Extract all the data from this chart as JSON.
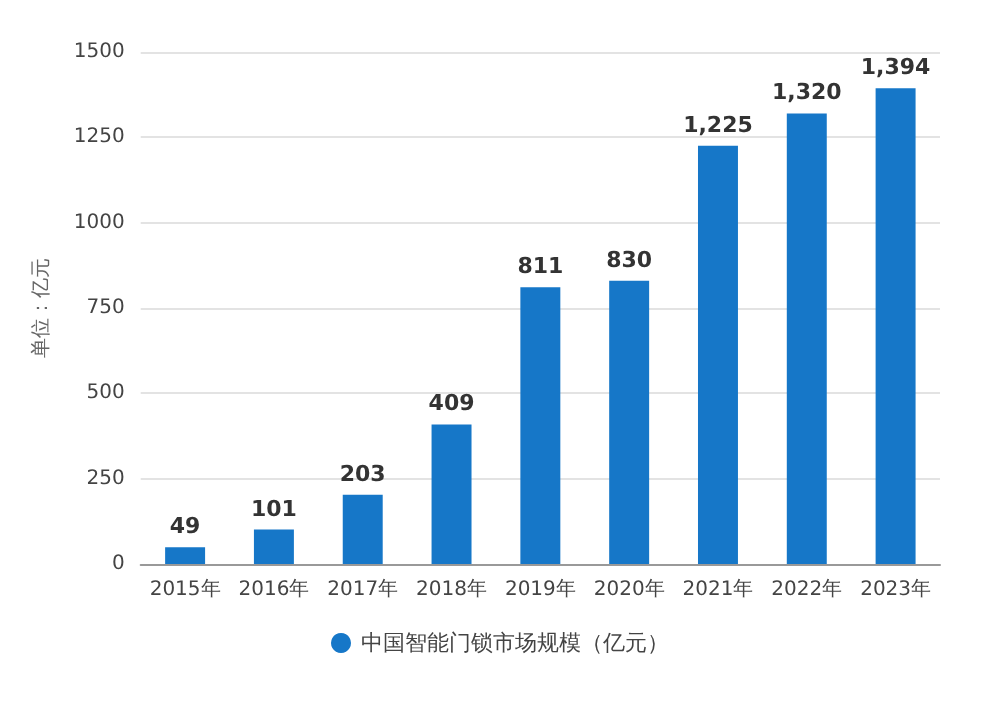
{
  "chart_data": {
    "type": "bar",
    "ylabel": "单位：亿元",
    "categories": [
      "2015年",
      "2016年",
      "2017年",
      "2018年",
      "2019年",
      "2020年",
      "2021年",
      "2022年",
      "2023年"
    ],
    "series": [
      {
        "name": "中国智能门锁市场规模（亿元）",
        "color": "#1677c8",
        "values": [
          49,
          101,
          203,
          409,
          811,
          830,
          1225,
          1320,
          1394
        ],
        "value_labels": [
          "49",
          "101",
          "203",
          "409",
          "811",
          "830",
          "1,225",
          "1,320",
          "1,394"
        ]
      }
    ],
    "ylim": [
      0,
      1500
    ],
    "yticks": [
      0,
      250,
      500,
      750,
      1000,
      1250,
      1500
    ],
    "grid": "y",
    "legend": "bottom"
  }
}
